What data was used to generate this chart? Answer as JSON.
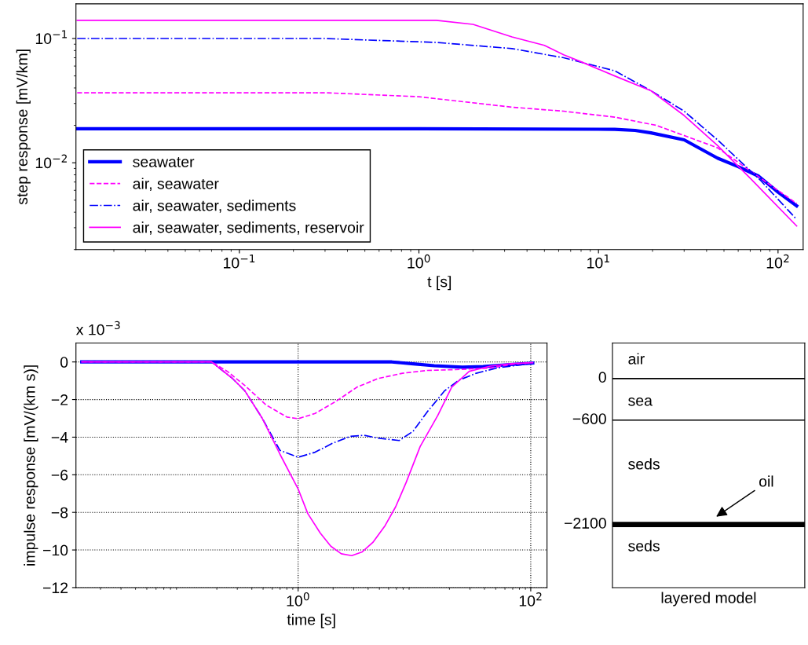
{
  "chart_data": [
    {
      "type": "line",
      "xlabel": "t [s]",
      "ylabel": "step response [mV/km]",
      "log": "xy",
      "grid": false,
      "legend": "bottom left",
      "xlim": [
        0.0123,
        138
      ],
      "ylim": [
        0.002,
        0.19
      ],
      "xticks": [
        {
          "value": 0.1,
          "label": "10$^{−1}$"
        },
        {
          "value": 1,
          "label": "10$^{0}$"
        },
        {
          "value": 10,
          "label": "10$^{1}$"
        },
        {
          "value": 100,
          "label": "10$^{2}$"
        }
      ],
      "yticks": [
        {
          "value": 0.01,
          "label": "10$^{−2}$"
        },
        {
          "value": 0.1,
          "label": "10$^{−1}$"
        }
      ],
      "series": [
        {
          "name": "seawater",
          "color": "#0000ff",
          "line_style": "solid",
          "x": [
            0.0125,
            1,
            12.3,
            16,
            19.6,
            30,
            46,
            60,
            78,
            100,
            127
          ],
          "values": [
            0.0188,
            0.0188,
            0.0186,
            0.0182,
            0.0174,
            0.0153,
            0.0109,
            0.0093,
            0.0078,
            0.0058,
            0.0045
          ]
        },
        {
          "name": "air, seawater",
          "color": "#ff00ff",
          "line_style": "dashed",
          "x": [
            0.0125,
            0.3,
            1.0,
            3.3,
            6.4,
            12.3,
            21,
            46,
            127
          ],
          "values": [
            0.0366,
            0.0366,
            0.034,
            0.028,
            0.026,
            0.0233,
            0.02,
            0.0132,
            0.0047
          ]
        },
        {
          "name": "air, seawater, sediments",
          "color": "#0000ff",
          "line_style": "dashdot",
          "x": [
            0.0125,
            0.3,
            1.25,
            3.3,
            6.4,
            12.3,
            19.6,
            30,
            46,
            80,
            127
          ],
          "values": [
            0.1,
            0.1,
            0.093,
            0.083,
            0.07,
            0.055,
            0.038,
            0.026,
            0.0153,
            0.0072,
            0.0035
          ]
        },
        {
          "name": "air, seawater, sediments, reservoir",
          "color": "#ff00ff",
          "line_style": "solid",
          "x": [
            0.0125,
            1.25,
            2,
            3.3,
            5,
            6.4,
            8,
            12.3,
            19.6,
            30,
            46,
            70,
            127
          ],
          "values": [
            0.14,
            0.14,
            0.13,
            0.103,
            0.088,
            0.074,
            0.065,
            0.05,
            0.038,
            0.024,
            0.0138,
            0.0075,
            0.0031
          ]
        }
      ]
    },
    {
      "type": "line",
      "xlabel": "time [s]",
      "ylabel": "impulse response [mV/(km s)]",
      "log": "x",
      "grid": true,
      "annotations": [
        "x 10$^{−3}$"
      ],
      "xlim": [
        0.0123,
        138
      ],
      "ylim": [
        -12,
        1
      ],
      "xticks": [
        {
          "value": 1,
          "label": "10$^{0}$"
        },
        {
          "value": 100,
          "label": "10$^{2}$"
        }
      ],
      "yticks": [
        0,
        -2,
        -4,
        -6,
        -8,
        -10,
        -12
      ],
      "series": [
        {
          "color": "#0000ff",
          "line_style": "solid",
          "x": [
            0.0138,
            1,
            6.4,
            9.8,
            14.8,
            25.8,
            39,
            63,
            104
          ],
          "values": [
            0,
            0,
            0,
            -0.1,
            -0.2,
            -0.28,
            -0.25,
            -0.15,
            -0.06
          ]
        },
        {
          "color": "#ff00ff",
          "line_style": "dashed",
          "x": [
            0.0138,
            0.18,
            0.246,
            0.348,
            0.528,
            0.8,
            1.0,
            1.4,
            2.12,
            3.21,
            4.87,
            7.9,
            12.9,
            22.4,
            45,
            68,
            104
          ],
          "values": [
            0,
            0,
            -0.5,
            -1.25,
            -2.28,
            -2.93,
            -3.02,
            -2.74,
            -2.09,
            -1.34,
            -0.88,
            -0.6,
            -0.45,
            -0.41,
            -0.32,
            -0.13,
            -0.04
          ]
        },
        {
          "color": "#0000ff",
          "line_style": "dashdot",
          "x": [
            0.0138,
            0.18,
            0.273,
            0.348,
            0.492,
            0.697,
            1.0,
            1.4,
            1.97,
            2.8,
            3.69,
            4.87,
            7.4,
            9.76,
            12.9,
            18.2,
            24.1,
            34,
            51.5,
            104
          ],
          "values": [
            0,
            0,
            -0.88,
            -1.53,
            -3.0,
            -4.7,
            -5.07,
            -4.8,
            -4.33,
            -3.96,
            -3.9,
            -4.05,
            -4.18,
            -3.68,
            -2.65,
            -1.53,
            -0.97,
            -0.6,
            -0.32,
            -0.07
          ]
        },
        {
          "color": "#ff00ff",
          "line_style": "solid",
          "x": [
            0.0138,
            0.18,
            0.273,
            0.348,
            0.492,
            0.697,
            1.0,
            1.21,
            1.55,
            1.91,
            2.35,
            2.89,
            3.56,
            4.39,
            5.6,
            6.9,
            8.5,
            11.2,
            15.9,
            20.9,
            29.6,
            45,
            68,
            104
          ],
          "values": [
            0,
            0,
            -0.88,
            -1.53,
            -3.0,
            -4.9,
            -6.75,
            -8.06,
            -9.1,
            -9.8,
            -10.2,
            -10.3,
            -10.1,
            -9.6,
            -8.7,
            -7.7,
            -6.4,
            -4.5,
            -2.84,
            -1.34,
            -0.5,
            -0.22,
            -0.09,
            -0.04
          ]
        }
      ]
    },
    {
      "type": "other",
      "xlabel": "layered model",
      "annotations": [
        "air",
        "0",
        "sea",
        "−600",
        "seds",
        "oil",
        "−2100",
        "seds"
      ]
    }
  ]
}
